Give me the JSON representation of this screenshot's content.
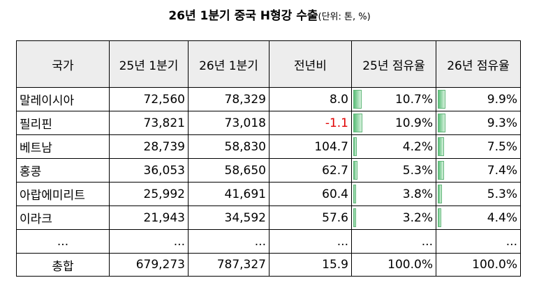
{
  "title": {
    "main": "26년 1분기 중국 H형강 수출",
    "unit": "(단위: 톤, %)"
  },
  "headers": [
    "국가",
    "25년 1분기",
    "26년 1분기",
    "전년비",
    "25년 점유율",
    "26년 점유율"
  ],
  "rows": [
    {
      "country": "말레이시아",
      "q1_25": "72,560",
      "q1_26": "78,329",
      "yoy": "8.0",
      "share25": "10.7%",
      "share26": "9.9%",
      "share25_val": 10.7,
      "share26_val": 9.9,
      "negative": false
    },
    {
      "country": "필리핀",
      "q1_25": "73,821",
      "q1_26": "73,018",
      "yoy": "-1.1",
      "share25": "10.9%",
      "share26": "9.3%",
      "share25_val": 10.9,
      "share26_val": 9.3,
      "negative": true
    },
    {
      "country": "베트남",
      "q1_25": "28,739",
      "q1_26": "58,830",
      "yoy": "104.7",
      "share25": "4.2%",
      "share26": "7.5%",
      "share25_val": 4.2,
      "share26_val": 7.5,
      "negative": false
    },
    {
      "country": "홍콩",
      "q1_25": "36,053",
      "q1_26": "58,650",
      "yoy": "62.7",
      "share25": "5.3%",
      "share26": "7.4%",
      "share25_val": 5.3,
      "share26_val": 7.4,
      "negative": false
    },
    {
      "country": "아랍에미리트",
      "q1_25": "25,992",
      "q1_26": "41,691",
      "yoy": "60.4",
      "share25": "3.8%",
      "share26": "5.3%",
      "share25_val": 3.8,
      "share26_val": 5.3,
      "negative": false
    },
    {
      "country": "이라크",
      "q1_25": "21,943",
      "q1_26": "34,592",
      "yoy": "57.6",
      "share25": "3.2%",
      "share26": "4.4%",
      "share25_val": 3.2,
      "share26_val": 4.4,
      "negative": false
    }
  ],
  "ellipsis": "...",
  "total": {
    "label": "총합",
    "q1_25": "679,273",
    "q1_26": "787,327",
    "yoy": "15.9",
    "share25": "100.0%",
    "share26": "100.0%"
  },
  "colors": {
    "header_bg": "#ededed",
    "negative": "#e00000",
    "bar": "#5cbf7a"
  }
}
